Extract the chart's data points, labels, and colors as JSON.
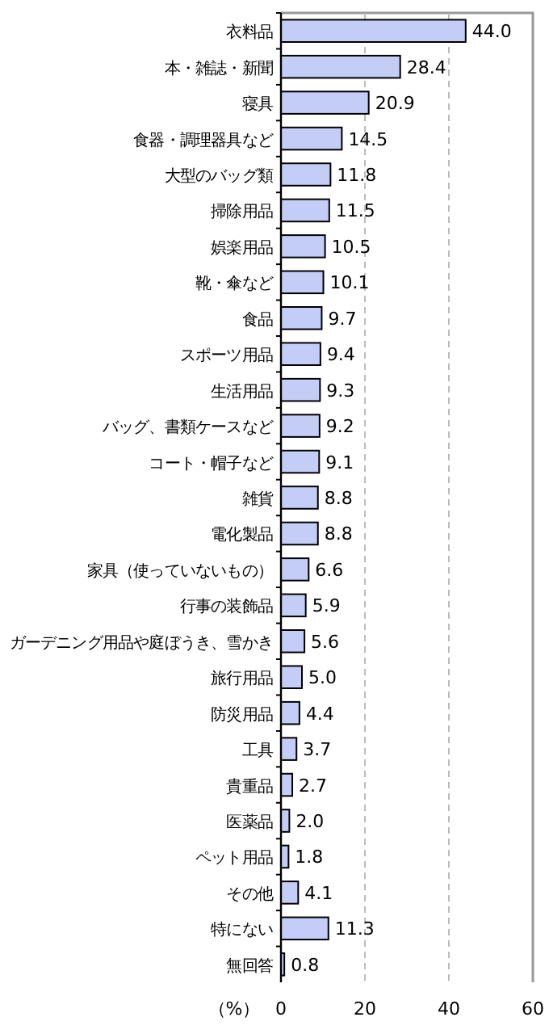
{
  "chart_data": {
    "type": "bar",
    "orientation": "horizontal",
    "xlabel": "（%）",
    "categories": [
      "衣料品",
      "本・雑誌・新聞",
      "寝具",
      "食器・調理器具など",
      "大型のバッグ類",
      "掃除用品",
      "娯楽用品",
      "靴・傘など",
      "食品",
      "スポーツ用品",
      "生活用品",
      "バッグ、書類ケースなど",
      "コート・帽子など",
      "雑貨",
      "電化製品",
      "家具（使っていないもの）",
      "行事の装飾品",
      "ガーデニング用品や庭ぼうき、雪かき",
      "旅行用品",
      "防災用品",
      "工具",
      "貴重品",
      "医薬品",
      "ペット用品",
      "その他",
      "特にない",
      "無回答"
    ],
    "values": [
      44.0,
      28.4,
      20.9,
      14.5,
      11.8,
      11.5,
      10.5,
      10.1,
      9.7,
      9.4,
      9.3,
      9.2,
      9.1,
      8.8,
      8.8,
      6.6,
      5.9,
      5.6,
      5.0,
      4.4,
      3.7,
      2.7,
      2.0,
      1.8,
      4.1,
      11.3,
      0.8
    ],
    "value_labels": [
      "44.0",
      "28.4",
      "20.9",
      "14.5",
      "11.8",
      "11.5",
      "10.5",
      "10.1",
      "9.7",
      "9.4",
      "9.3",
      "9.2",
      "9.1",
      "8.8",
      "8.8",
      "6.6",
      "5.9",
      "5.6",
      "5.0",
      "4.4",
      "3.7",
      "2.7",
      "2.0",
      "1.8",
      "4.1",
      "11.3",
      "0.8"
    ],
    "color": "#c3cdf5",
    "xlim": [
      0,
      60
    ],
    "xticks": [
      0,
      20,
      40,
      60
    ],
    "grid": "x"
  }
}
